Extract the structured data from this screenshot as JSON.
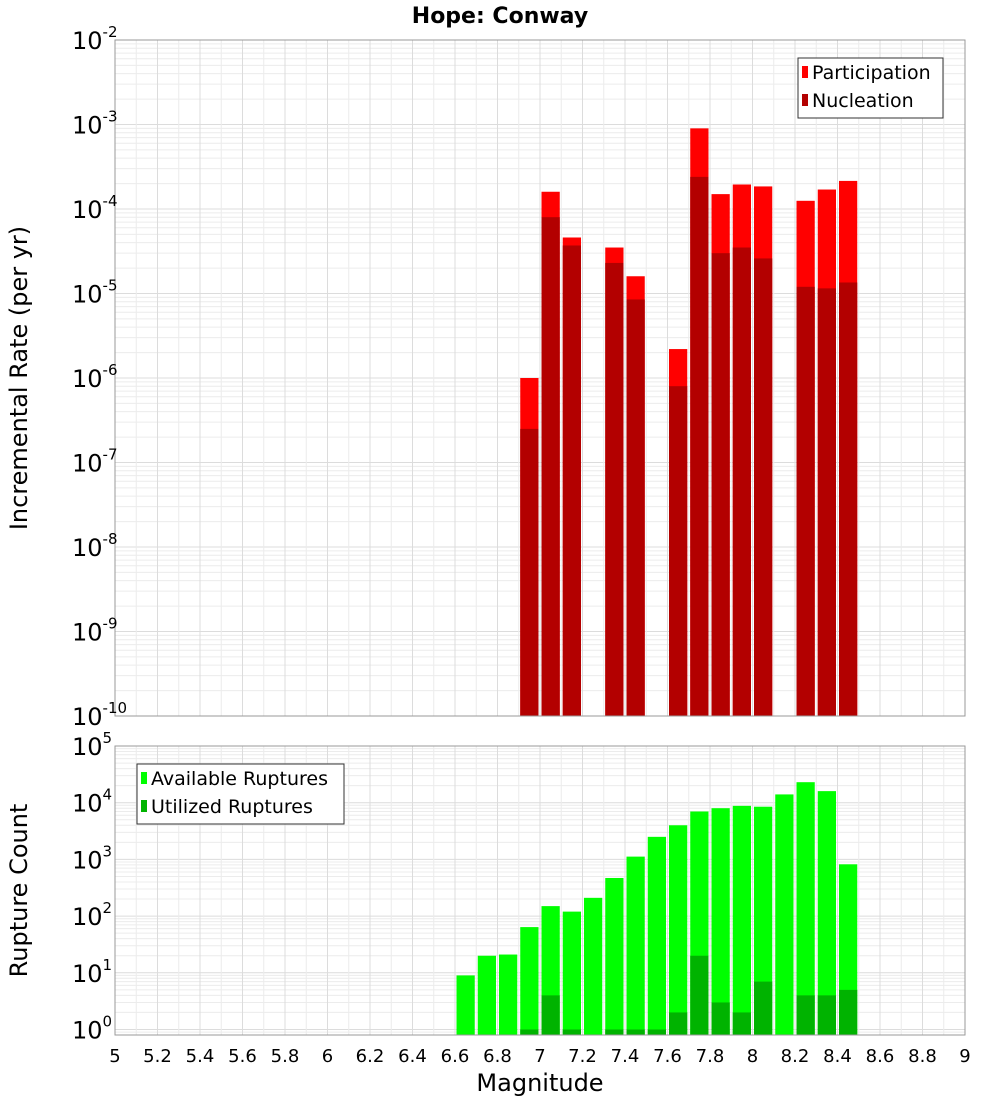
{
  "page": {
    "title": "Hope: Conway"
  },
  "chart_data": [
    {
      "type": "bar",
      "title": "Hope: Conway",
      "xlabel": "",
      "ylabel": "Incremental Rate (per yr)",
      "yscale": "log",
      "ylim": [
        1e-10,
        0.01
      ],
      "xlim": [
        5,
        9
      ],
      "grid": true,
      "legend_position": "top-right",
      "bar_width": 0.1,
      "series": [
        {
          "name": "Participation",
          "color": "#ff0000",
          "x": [
            6.95,
            7.05,
            7.15,
            7.35,
            7.45,
            7.65,
            7.75,
            7.85,
            7.95,
            8.05,
            8.25,
            8.35,
            8.45
          ],
          "values": [
            1e-06,
            0.00016,
            4.6e-05,
            3.5e-05,
            1.6e-05,
            2.2e-06,
            0.0009,
            0.00015,
            0.000195,
            0.000185,
            0.000125,
            0.00017,
            0.000215
          ]
        },
        {
          "name": "Nucleation",
          "color": "#b30000",
          "x": [
            6.95,
            7.05,
            7.15,
            7.35,
            7.45,
            7.65,
            7.75,
            7.85,
            7.95,
            8.05,
            8.25,
            8.35,
            8.45
          ],
          "values": [
            2.5e-07,
            8e-05,
            3.7e-05,
            2.3e-05,
            8.5e-06,
            8e-07,
            0.00024,
            3e-05,
            3.5e-05,
            2.6e-05,
            1.2e-05,
            1.15e-05,
            1.35e-05
          ]
        }
      ],
      "y_ticks": [
        {
          "base": "10",
          "exp": "-10"
        },
        {
          "base": "10",
          "exp": "-9"
        },
        {
          "base": "10",
          "exp": "-8"
        },
        {
          "base": "10",
          "exp": "-7"
        },
        {
          "base": "10",
          "exp": "-6"
        },
        {
          "base": "10",
          "exp": "-5"
        },
        {
          "base": "10",
          "exp": "-4"
        },
        {
          "base": "10",
          "exp": "-3"
        },
        {
          "base": "10",
          "exp": "-2"
        }
      ]
    },
    {
      "type": "bar",
      "title": "",
      "xlabel": "Magnitude",
      "ylabel": "Rupture Count",
      "yscale": "log",
      "ylim": [
        0.8,
        100000
      ],
      "xlim": [
        5,
        9
      ],
      "grid": true,
      "legend_position": "top-left",
      "bar_width": 0.1,
      "series": [
        {
          "name": "Available Ruptures",
          "color": "#00ff00",
          "x": [
            6.65,
            6.75,
            6.85,
            6.95,
            7.05,
            7.15,
            7.25,
            7.35,
            7.45,
            7.55,
            7.65,
            7.75,
            7.85,
            7.95,
            8.05,
            8.15,
            8.25,
            8.35,
            8.45
          ],
          "values": [
            9,
            20,
            21,
            64,
            150,
            120,
            210,
            470,
            1120,
            2500,
            4000,
            7000,
            8000,
            8800,
            8500,
            14000,
            23000,
            16000,
            820
          ]
        },
        {
          "name": "Utilized Ruptures",
          "color": "#00b300",
          "x": [
            6.95,
            7.05,
            7.15,
            7.35,
            7.45,
            7.55,
            7.65,
            7.75,
            7.85,
            7.95,
            8.05,
            8.25,
            8.35,
            8.45
          ],
          "values": [
            1,
            4,
            1,
            1,
            1,
            1,
            2,
            20,
            3,
            2,
            7,
            4,
            4,
            5
          ]
        }
      ],
      "x_ticks": [
        "5",
        "5.2",
        "5.4",
        "5.6",
        "5.8",
        "6",
        "6.2",
        "6.4",
        "6.6",
        "6.8",
        "7",
        "7.2",
        "7.4",
        "7.6",
        "7.8",
        "8",
        "8.2",
        "8.4",
        "8.6",
        "8.8",
        "9"
      ],
      "y_ticks": [
        {
          "base": "10",
          "exp": "0"
        },
        {
          "base": "10",
          "exp": "1"
        },
        {
          "base": "10",
          "exp": "2"
        },
        {
          "base": "10",
          "exp": "3"
        },
        {
          "base": "10",
          "exp": "4"
        },
        {
          "base": "10",
          "exp": "5"
        }
      ]
    }
  ]
}
